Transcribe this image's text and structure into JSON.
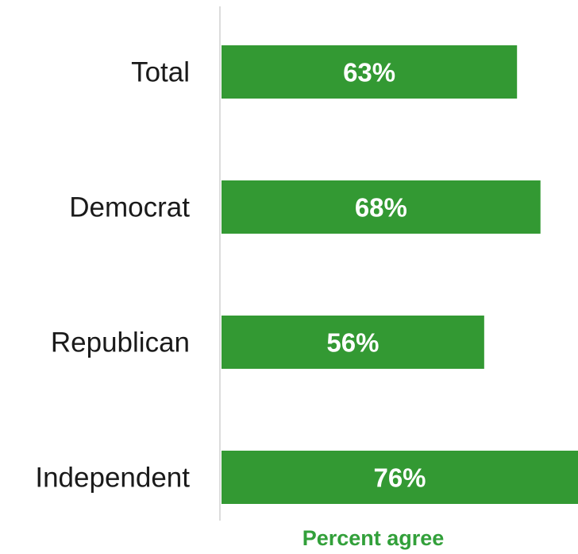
{
  "chart_data": {
    "type": "bar",
    "orientation": "horizontal",
    "categories": [
      "Total",
      "Democrat",
      "Republican",
      "Independent"
    ],
    "values": [
      63,
      68,
      56,
      76
    ],
    "value_labels": [
      "63%",
      "68%",
      "56%",
      "76%"
    ],
    "xlabel": "Percent agree",
    "xlim": [
      0,
      76
    ],
    "grid": false,
    "legend": "none",
    "colors": {
      "bar": "#339933",
      "value_label": "#ffffff",
      "axis_title": "#32a03a",
      "axis_line": "#d0d0d0",
      "category_label": "#1a1a1a"
    }
  }
}
